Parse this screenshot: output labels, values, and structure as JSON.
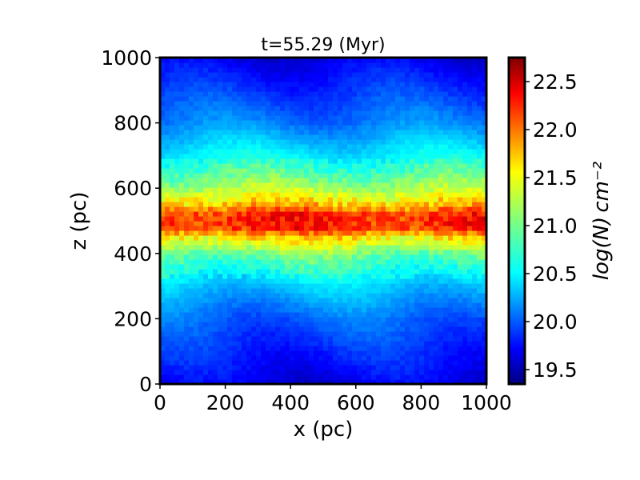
{
  "chart_data": {
    "type": "heatmap",
    "title": "t=55.29 (Myr)",
    "xlabel": "x (pc)",
    "ylabel": "z (pc)",
    "xlim": [
      0,
      1000
    ],
    "ylim": [
      0,
      1000
    ],
    "xticks": [
      0,
      200,
      400,
      600,
      800,
      1000
    ],
    "yticks": [
      0,
      200,
      400,
      600,
      800,
      1000
    ],
    "colorbar": {
      "label": "log(N) cm⁻²",
      "ticks": [
        "19.5",
        "20.0",
        "20.5",
        "21.0",
        "21.5",
        "22.0",
        "22.5"
      ],
      "tick_values": [
        19.5,
        20.0,
        20.5,
        21.0,
        21.5,
        22.0,
        22.5
      ],
      "range": [
        19.35,
        22.75
      ],
      "colormap": "jet"
    },
    "profile": {
      "description_z": [
        0,
        100,
        200,
        300,
        400,
        450,
        480,
        520,
        550,
        600,
        700,
        800,
        900,
        1000
      ],
      "log_column_density": [
        19.7,
        19.9,
        20.1,
        20.45,
        21.0,
        21.6,
        22.2,
        22.2,
        21.7,
        21.2,
        20.6,
        20.2,
        19.95,
        19.7
      ]
    },
    "grid": false,
    "legend": "none"
  },
  "colors": {
    "frame": "#000000",
    "background": "#ffffff"
  }
}
